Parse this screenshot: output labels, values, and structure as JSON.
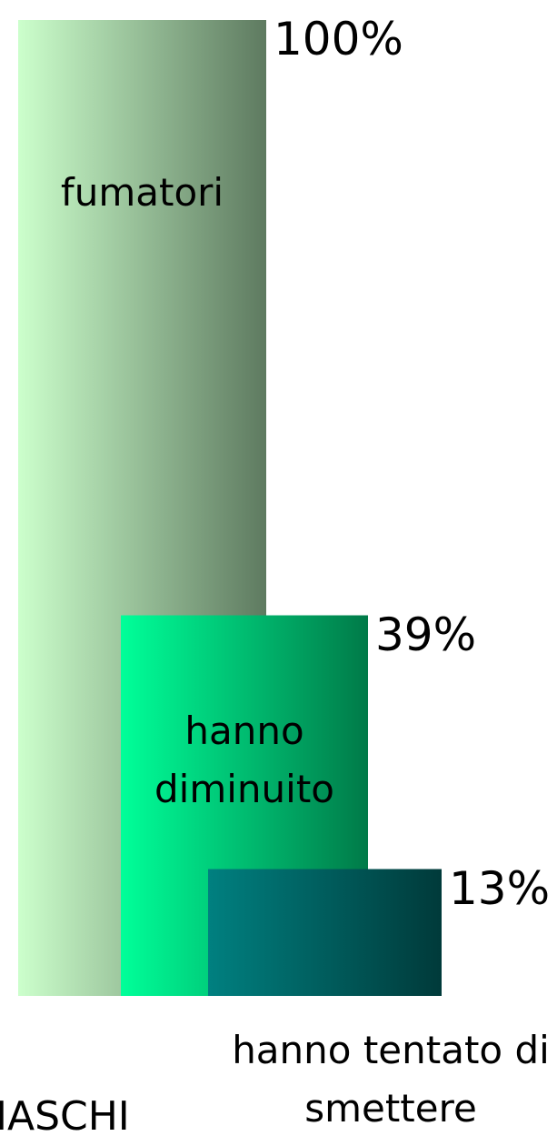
{
  "chart_data": {
    "type": "bar",
    "categories": [
      "fumatori",
      "hanno diminuito",
      "hanno tentato di smettere"
    ],
    "values": [
      100,
      39,
      13
    ],
    "value_labels": [
      "100%",
      "39%",
      "13%"
    ],
    "colors": [
      [
        "#ccffcc",
        "#5e7a60"
      ],
      [
        "#00ff99",
        "#007a48"
      ],
      [
        "#008080",
        "#003a3a"
      ]
    ],
    "ylim": [
      0,
      100
    ],
    "note": "MASCHI"
  }
}
